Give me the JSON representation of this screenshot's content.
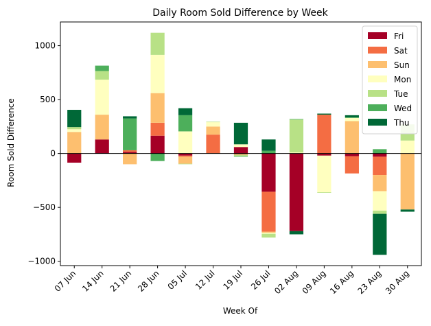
{
  "chart_data": {
    "type": "bar",
    "stacked": true,
    "title": "Daily Room Sold Difference by Week",
    "xlabel": "Week Of",
    "ylabel": "Room Sold Difference",
    "categories": [
      "07 Jun",
      "14 Jun",
      "21 Jun",
      "28 Jun",
      "05 Jul",
      "12 Jul",
      "19 Jul",
      "26 Jul",
      "02 Aug",
      "09 Aug",
      "16 Aug",
      "23 Aug",
      "30 Aug"
    ],
    "ylim": [
      -1040,
      1220
    ],
    "yticks": [
      -1000,
      -500,
      0,
      500,
      1000
    ],
    "ytick_labels": [
      "−1000",
      "−500",
      "0",
      "500",
      "1000"
    ],
    "zero_line": true,
    "grid": false,
    "legend_position": "top-right",
    "series": [
      {
        "name": "Fri",
        "color": "#a50026",
        "values": [
          -85,
          130,
          15,
          165,
          -20,
          0,
          60,
          -355,
          -720,
          -20,
          -25,
          -30,
          0
        ]
      },
      {
        "name": "Sat",
        "color": "#f46d43",
        "values": [
          0,
          0,
          15,
          120,
          -10,
          175,
          -10,
          -370,
          0,
          360,
          -160,
          -170,
          0
        ]
      },
      {
        "name": "Sun",
        "color": "#fdbf6f",
        "values": [
          200,
          230,
          -100,
          275,
          -65,
          75,
          0,
          -10,
          0,
          0,
          300,
          -150,
          -520
        ]
      },
      {
        "name": "Mon",
        "color": "#ffffbf",
        "values": [
          25,
          325,
          0,
          355,
          205,
          40,
          25,
          -10,
          10,
          -340,
          30,
          -180,
          120
        ]
      },
      {
        "name": "Tue",
        "color": "#b8e186",
        "values": [
          20,
          80,
          0,
          205,
          -5,
          5,
          -15,
          -35,
          305,
          -5,
          0,
          -30,
          150
        ]
      },
      {
        "name": "Wed",
        "color": "#4daf5b",
        "values": [
          0,
          50,
          295,
          -70,
          150,
          0,
          -5,
          25,
          5,
          0,
          5,
          40,
          0
        ]
      },
      {
        "name": "Thu",
        "color": "#006837",
        "values": [
          160,
          0,
          20,
          0,
          65,
          0,
          200,
          105,
          -30,
          10,
          20,
          -380,
          -20
        ]
      }
    ]
  }
}
